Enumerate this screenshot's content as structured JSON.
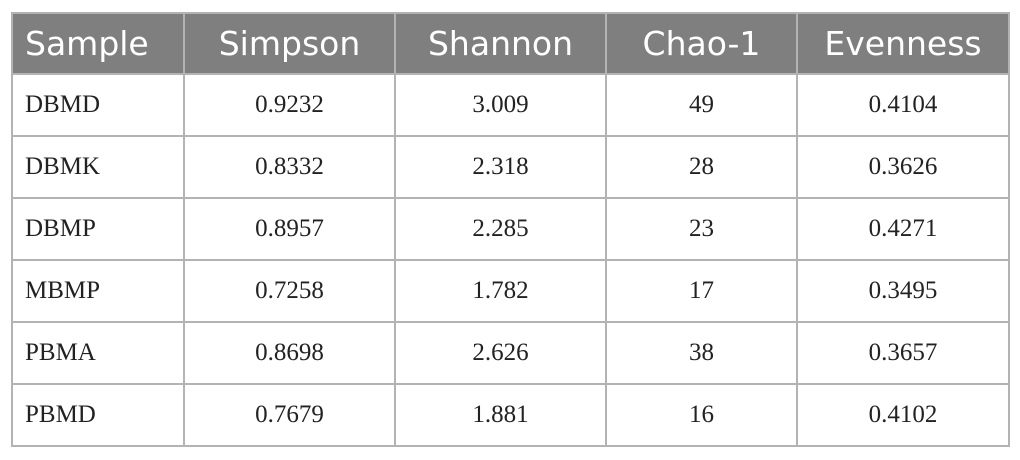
{
  "table": {
    "columns": [
      "Sample",
      "Simpson",
      "Shannon",
      "Chao-1",
      "Evenness"
    ],
    "rows": [
      [
        "DBMD",
        "0.9232",
        "3.009",
        "49",
        "0.4104"
      ],
      [
        "DBMK",
        "0.8332",
        "2.318",
        "28",
        "0.3626"
      ],
      [
        "DBMP",
        "0.8957",
        "2.285",
        "23",
        "0.4271"
      ],
      [
        "MBMP",
        "0.7258",
        "1.782",
        "17",
        "0.3495"
      ],
      [
        "PBMA",
        "0.8698",
        "2.626",
        "38",
        "0.3657"
      ],
      [
        "PBMD",
        "0.7679",
        "1.881",
        "16",
        "0.4102"
      ]
    ]
  }
}
